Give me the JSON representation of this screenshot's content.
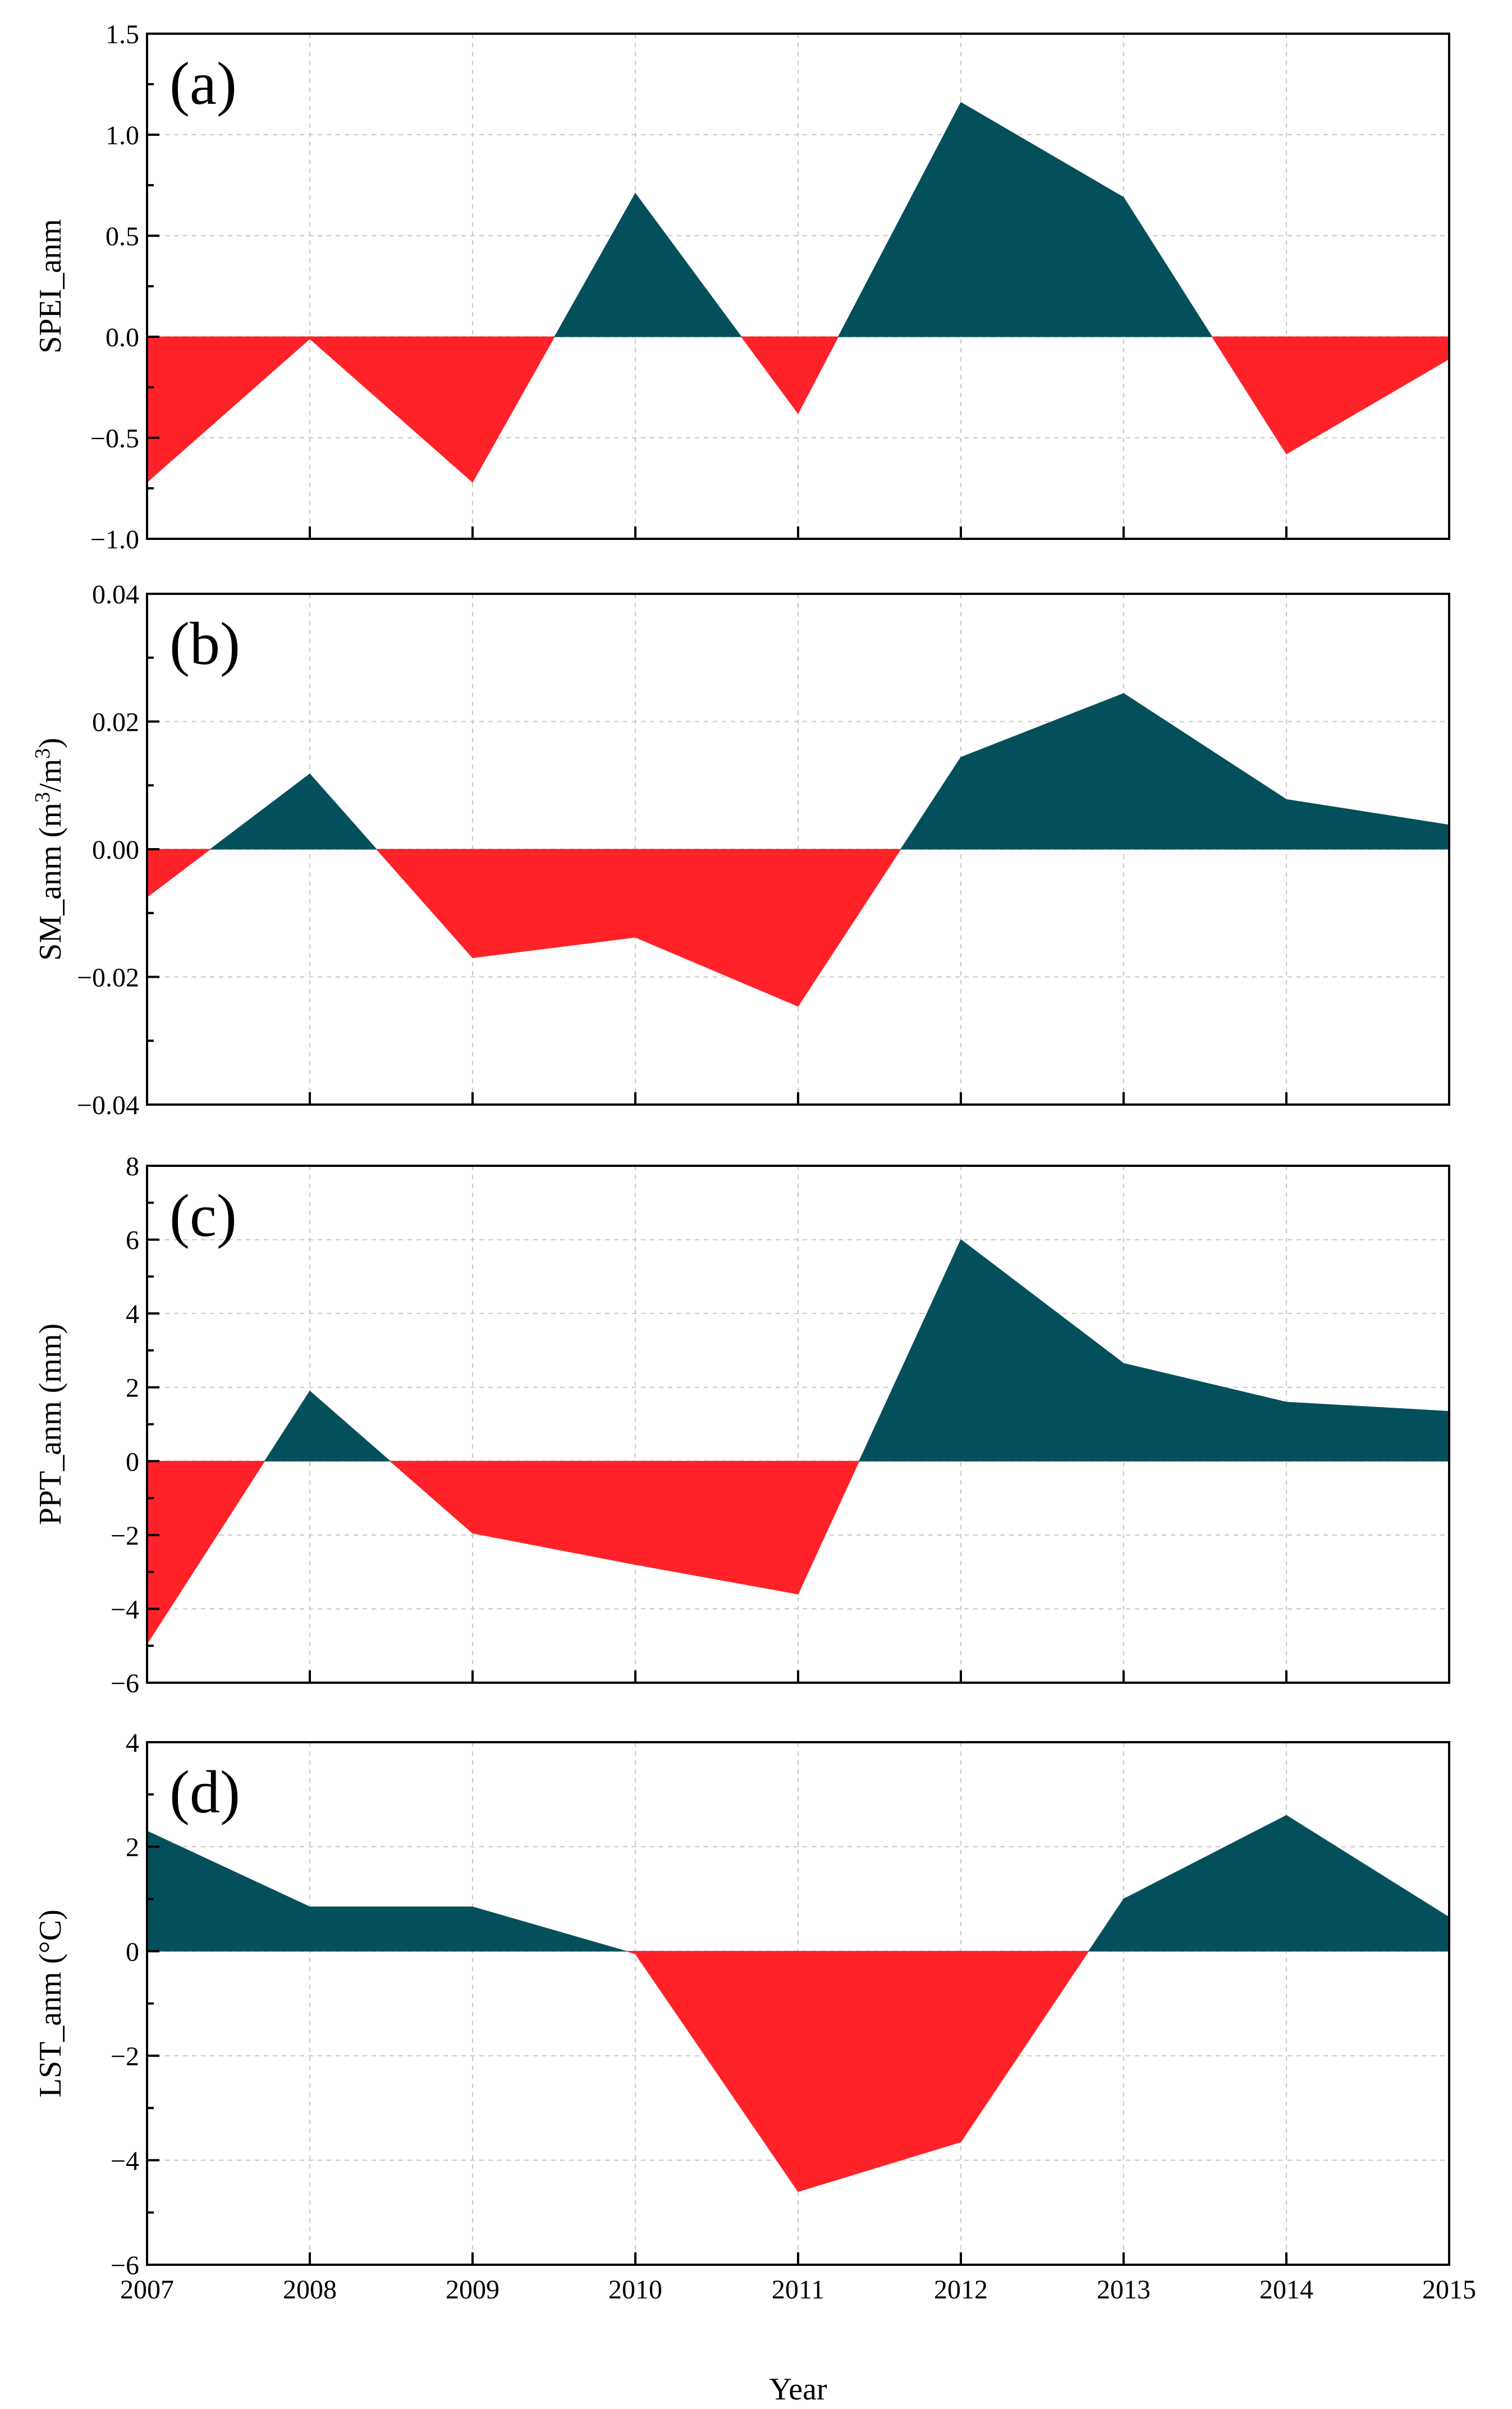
{
  "colors": {
    "positive": "#03505c",
    "negative": "#ff2229"
  },
  "x_title": "Year",
  "chart_data": [
    {
      "type": "area",
      "panel_label": "(a)",
      "ylabel": "SPEI_anm",
      "x": [
        2007,
        2008,
        2009,
        2010,
        2011,
        2012,
        2013,
        2014,
        2015
      ],
      "values": [
        -0.72,
        -0.01,
        -0.72,
        0.71,
        -0.38,
        1.16,
        0.69,
        -0.58,
        -0.11
      ],
      "xlim": [
        2007,
        2015
      ],
      "ylim": [
        -1.0,
        1.5
      ],
      "yticks": [
        -1.0,
        -0.5,
        0.0,
        0.5,
        1.0,
        1.5
      ],
      "ytick_labels": [
        "−1.0",
        "−0.5",
        "0.0",
        "0.5",
        "1.0",
        "1.5"
      ],
      "positive_color": "#03505c",
      "negative_color": "#ff2229",
      "grid": true
    },
    {
      "type": "area",
      "panel_label": "(b)",
      "ylabel": "SM_anm (m3/m3)",
      "ylabel_parts": {
        "main": "SM_anm (m",
        "exp1": "3",
        "mid": "/m",
        "exp2": "3",
        "end": ")"
      },
      "x": [
        2007,
        2008,
        2009,
        2010,
        2011,
        2012,
        2013,
        2014,
        2015
      ],
      "values": [
        -0.0075,
        0.0118,
        -0.017,
        -0.0138,
        -0.0246,
        0.0144,
        0.0244,
        0.0078,
        0.0038
      ],
      "xlim": [
        2007,
        2015
      ],
      "ylim": [
        -0.04,
        0.04
      ],
      "yticks": [
        -0.04,
        -0.02,
        0.0,
        0.02,
        0.04
      ],
      "ytick_labels": [
        "−0.04",
        "−0.02",
        "0.00",
        "0.02",
        "0.04"
      ],
      "positive_color": "#03505c",
      "negative_color": "#ff2229",
      "grid": true
    },
    {
      "type": "area",
      "panel_label": "(c)",
      "ylabel": "PPT_anm (mm)",
      "x": [
        2007,
        2008,
        2009,
        2010,
        2011,
        2012,
        2013,
        2014,
        2015
      ],
      "values": [
        -4.95,
        1.9,
        -1.95,
        -2.8,
        -3.6,
        6.0,
        2.65,
        1.6,
        1.35
      ],
      "xlim": [
        2007,
        2015
      ],
      "ylim": [
        -6,
        8
      ],
      "yticks": [
        -6,
        -4,
        -2,
        0,
        2,
        4,
        6,
        8
      ],
      "ytick_labels": [
        "−6",
        "−4",
        "−2",
        "0",
        "2",
        "4",
        "6",
        "8"
      ],
      "positive_color": "#03505c",
      "negative_color": "#ff2229",
      "grid": true
    },
    {
      "type": "area",
      "panel_label": "(d)",
      "ylabel": "LST_anm (°C)",
      "x": [
        2007,
        2008,
        2009,
        2010,
        2011,
        2012,
        2013,
        2014,
        2015
      ],
      "values": [
        2.3,
        0.85,
        0.85,
        -0.05,
        -4.6,
        -3.65,
        1.0,
        2.6,
        0.65
      ],
      "xlim": [
        2007,
        2015
      ],
      "ylim": [
        -6,
        4
      ],
      "yticks": [
        -6,
        -4,
        -2,
        0,
        2,
        4
      ],
      "ytick_labels": [
        "−6",
        "−4",
        "−2",
        "0",
        "2",
        "4"
      ],
      "xticks": [
        2007,
        2008,
        2009,
        2010,
        2011,
        2012,
        2013,
        2014,
        2015
      ],
      "xtick_labels": [
        "2007",
        "2008",
        "2009",
        "2010",
        "2011",
        "2012",
        "2013",
        "2014",
        "2015"
      ],
      "xlabel": "Year",
      "positive_color": "#03505c",
      "negative_color": "#ff2229",
      "grid": true
    }
  ]
}
